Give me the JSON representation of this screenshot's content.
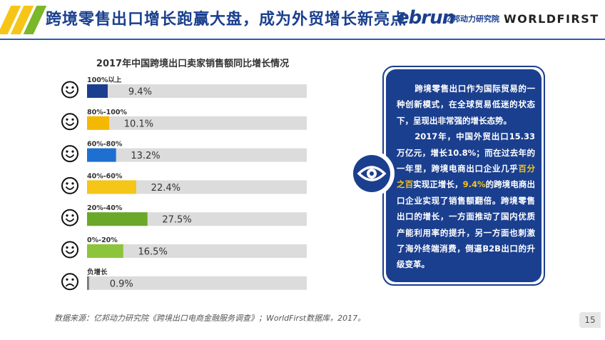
{
  "header": {
    "title": "跨境零售出口增长跑赢大盘，成为外贸增长新亮点",
    "logo_ebrun": "ebrun",
    "logo_ebrun_cn": "亿邦动力研究院",
    "logo_worldfirst": "WORLDFIRST",
    "stripe_colors": [
      "#f5c518",
      "#f5c518",
      "#7ab72a"
    ]
  },
  "chart_data": {
    "type": "bar",
    "orientation": "horizontal",
    "title": "2017年中国跨境出口卖家销售额同比增长情况",
    "xlim": [
      0,
      100
    ],
    "grid": false,
    "legend": "none",
    "categories": [
      "100%以上",
      "80%-100%",
      "60%-80%",
      "40%-60%",
      "20%-40%",
      "0%-20%",
      "负增长"
    ],
    "values": [
      9.4,
      10.1,
      13.2,
      22.4,
      27.5,
      16.5,
      0.9
    ],
    "value_labels": [
      "9.4%",
      "10.1%",
      "13.2%",
      "22.4%",
      "27.5%",
      "16.5%",
      "0.9%"
    ],
    "colors": [
      "#1b3f8f",
      "#f5b800",
      "#1f6fd1",
      "#f5c518",
      "#6aa82a",
      "#8cc43c",
      "#777777"
    ],
    "track_color": "#dcdcdc",
    "row_icons": [
      "smile-icon",
      "smile-icon",
      "smile-icon",
      "smile-icon",
      "smile-icon",
      "smile-icon",
      "sad-icon"
    ]
  },
  "panel": {
    "para1": "跨境零售出口作为国际贸易的一种创新模式，在全球贸易低迷的状态下，呈现出非常强的增长态势。",
    "para2_a": "2017年，中国外贸出口15.33万亿元，增长10.8%；而在过去年的一年里，跨境电商出口企业几乎",
    "para2_hl1": "百分之百",
    "para2_b": "实现正增长，",
    "para2_hl2": "9.4%",
    "para2_c": "的跨境电商出口企业实现了销售额翻倍。跨境零售出口的增长，一方面推动了国内优质产能利用率的提升，另一方面也刺激了海外终端消费，倒逼B2B出口的升级变革。",
    "icon": "eye-icon"
  },
  "footer": {
    "source": "数据来源：亿邦动力研究院《跨境出口电商金融服务调查》；WorldFirst数据库，2017。",
    "page": "15"
  }
}
